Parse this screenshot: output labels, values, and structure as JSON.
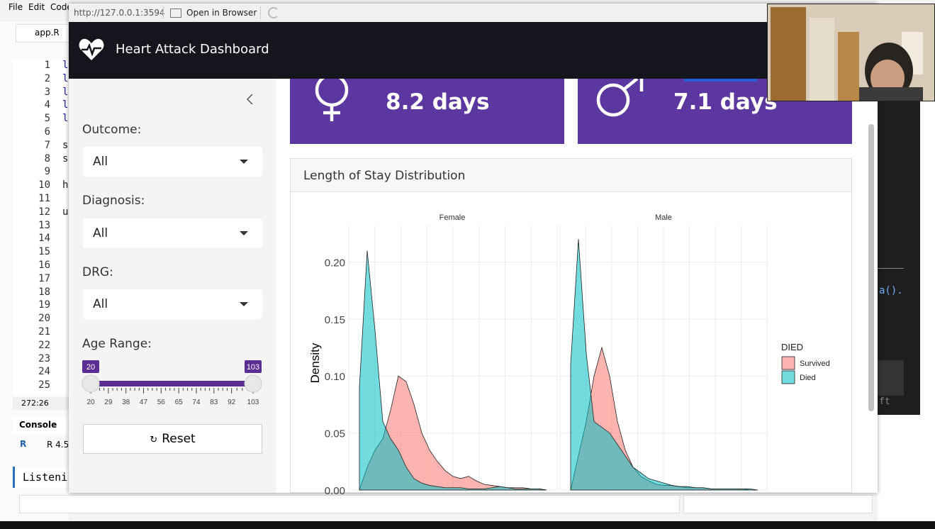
{
  "app_window": {
    "menu": [
      "File",
      "Edit",
      "Code"
    ],
    "tab": "app.R",
    "line_numbers": [
      1,
      2,
      3,
      4,
      5,
      6,
      7,
      8,
      9,
      10,
      11,
      12,
      13,
      14,
      15,
      16,
      17,
      18,
      19,
      20,
      21,
      22,
      23,
      24,
      25
    ],
    "code_chars": [
      {
        "line": 1,
        "text": "l"
      },
      {
        "line": 2,
        "text": "l"
      },
      {
        "line": 3,
        "text": "l"
      },
      {
        "line": 4,
        "text": "l"
      },
      {
        "line": 5,
        "text": "l"
      },
      {
        "line": 7,
        "text": "s"
      },
      {
        "line": 8,
        "text": "s"
      },
      {
        "line": 10,
        "text": "h"
      },
      {
        "line": 12,
        "text": "u"
      }
    ],
    "cursor_position": "272:26",
    "console_tab": "Console",
    "r_version": "R 4.5",
    "console_text": "Listeni",
    "right_panel_texts": [
      "a().",
      "ft"
    ]
  },
  "viewer": {
    "url": "http://127.0.0.1:3594",
    "open_button": "Open in Browser"
  },
  "header": {
    "title": "Heart Attack Dashboard"
  },
  "sidebar": {
    "filters": [
      {
        "label": "Outcome:",
        "value": "All"
      },
      {
        "label": "Diagnosis:",
        "value": "All"
      },
      {
        "label": "DRG:",
        "value": "All"
      }
    ],
    "age_range": {
      "label": "Age Range:",
      "min": 20,
      "max": 103,
      "value": [
        20,
        103
      ],
      "ticks": [
        20,
        29,
        38,
        47,
        56,
        65,
        74,
        83,
        92,
        103
      ]
    },
    "reset": "Reset"
  },
  "value_boxes": [
    {
      "value": "8.2 days"
    },
    {
      "value": "7.1 days"
    }
  ],
  "card": {
    "title": "Length of Stay Distribution"
  },
  "chart_data": {
    "type": "area",
    "y_label": "Density",
    "ylim": [
      0,
      0.232
    ],
    "yticks": [
      {
        "value": 0,
        "label": "0.00"
      },
      {
        "value": 0.05,
        "label": "0.05"
      },
      {
        "value": 0.1,
        "label": "0.10"
      },
      {
        "value": 0.15,
        "label": "0.15"
      },
      {
        "value": 0.2,
        "label": "0.20"
      }
    ],
    "grid": true,
    "legend_title": "DIED",
    "categories": [
      null,
      null,
      null,
      null,
      null,
      null,
      null,
      null,
      null,
      null,
      null,
      null,
      null,
      null,
      null,
      null,
      null,
      null,
      null,
      null,
      null,
      null,
      null,
      null,
      null
    ],
    "panels": [
      {
        "title": "Female",
        "series": [
          {
            "name": "Survived",
            "color": "#f8766d",
            "values": [
              0.0,
              0.02,
              0.035,
              0.045,
              0.07,
              0.1,
              0.095,
              0.075,
              0.05,
              0.035,
              0.025,
              0.017,
              0.012,
              0.01,
              0.012,
              0.008,
              0.005,
              0.004,
              0.003,
              0.002,
              0.002,
              0.002,
              0.001,
              0.001,
              0.0
            ]
          },
          {
            "name": "Died",
            "color": "#00bfc4",
            "values": [
              0.09,
              0.21,
              0.14,
              0.06,
              0.045,
              0.035,
              0.02,
              0.01,
              0.006,
              0.004,
              0.003,
              0.002,
              0.002,
              0.002,
              0.001,
              0.001,
              0.001,
              0.002,
              0.003,
              0.002,
              0.001,
              0.001,
              0.001,
              0.001,
              0.0
            ]
          }
        ]
      },
      {
        "title": "Male",
        "series": [
          {
            "name": "Survived",
            "color": "#f8766d",
            "values": [
              0.0,
              0.03,
              0.06,
              0.1,
              0.125,
              0.1,
              0.06,
              0.035,
              0.02,
              0.012,
              0.008,
              0.005,
              0.004,
              0.004,
              0.003,
              0.002,
              0.002,
              0.002,
              0.001,
              0.001,
              0.001,
              0.001,
              0.001,
              0.0,
              0.0
            ]
          },
          {
            "name": "Died",
            "color": "#00bfc4",
            "values": [
              0.11,
              0.22,
              0.12,
              0.06,
              0.055,
              0.05,
              0.04,
              0.03,
              0.02,
              0.015,
              0.01,
              0.008,
              0.006,
              0.004,
              0.003,
              0.003,
              0.002,
              0.002,
              0.001,
              0.001,
              0.001,
              0.001,
              0.001,
              0.001,
              0.0
            ]
          }
        ]
      }
    ]
  }
}
